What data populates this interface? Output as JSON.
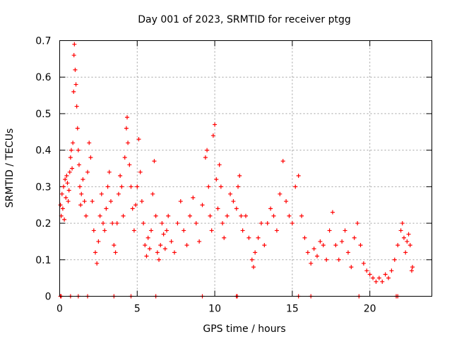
{
  "chart_data": {
    "type": "scatter",
    "title": "Day 001 of 2023, SRMTID for receiver ptgg",
    "xlabel": "GPS time / hours",
    "ylabel": "SRMTID / TECUs",
    "xlim": [
      0,
      24
    ],
    "ylim": [
      0,
      0.7
    ],
    "xticks": [
      0,
      5,
      10,
      15,
      20
    ],
    "yticks": [
      0,
      0.1,
      0.2,
      0.3,
      0.4,
      0.5,
      0.6,
      0.7
    ],
    "xtick_labels": [
      "0",
      "5",
      "10",
      "15",
      "20"
    ],
    "ytick_labels": [
      "0",
      "0.1",
      "0.2",
      "0.3",
      "0.4",
      "0.5",
      "0.6",
      "0.7"
    ],
    "grid": true,
    "marker": "plus",
    "color": "#ff0000",
    "series": [
      {
        "name": "SRMTID",
        "points": [
          [
            0.05,
            0.25
          ],
          [
            0.1,
            0.22
          ],
          [
            0.15,
            0.28
          ],
          [
            0.2,
            0.24
          ],
          [
            0.25,
            0.3
          ],
          [
            0.3,
            0.21
          ],
          [
            0.35,
            0.32
          ],
          [
            0.4,
            0.27
          ],
          [
            0.45,
            0.33
          ],
          [
            0.5,
            0.31
          ],
          [
            0.55,
            0.26
          ],
          [
            0.6,
            0.29
          ],
          [
            0.65,
            0.34
          ],
          [
            0.7,
            0.38
          ],
          [
            0.75,
            0.4
          ],
          [
            0.8,
            0.35
          ],
          [
            0.85,
            0.42
          ],
          [
            0.9,
            0.56
          ],
          [
            0.92,
            0.66
          ],
          [
            0.95,
            0.69
          ],
          [
            1.0,
            0.62
          ],
          [
            1.05,
            0.58
          ],
          [
            1.1,
            0.52
          ],
          [
            1.15,
            0.46
          ],
          [
            1.2,
            0.4
          ],
          [
            1.25,
            0.36
          ],
          [
            1.3,
            0.3
          ],
          [
            1.35,
            0.25
          ],
          [
            1.4,
            0.28
          ],
          [
            1.5,
            0.32
          ],
          [
            1.6,
            0.26
          ],
          [
            1.7,
            0.22
          ],
          [
            1.8,
            0.34
          ],
          [
            1.9,
            0.42
          ],
          [
            2.0,
            0.38
          ],
          [
            2.1,
            0.26
          ],
          [
            2.2,
            0.18
          ],
          [
            2.3,
            0.12
          ],
          [
            2.4,
            0.09
          ],
          [
            2.5,
            0.15
          ],
          [
            2.6,
            0.22
          ],
          [
            2.7,
            0.28
          ],
          [
            2.8,
            0.2
          ],
          [
            2.9,
            0.18
          ],
          [
            3.0,
            0.24
          ],
          [
            3.1,
            0.3
          ],
          [
            3.2,
            0.34
          ],
          [
            3.3,
            0.26
          ],
          [
            3.4,
            0.2
          ],
          [
            3.5,
            0.14
          ],
          [
            3.6,
            0.12
          ],
          [
            3.7,
            0.2
          ],
          [
            3.8,
            0.28
          ],
          [
            3.9,
            0.33
          ],
          [
            4.0,
            0.3
          ],
          [
            4.1,
            0.22
          ],
          [
            4.2,
            0.38
          ],
          [
            4.3,
            0.46
          ],
          [
            4.35,
            0.49
          ],
          [
            4.4,
            0.42
          ],
          [
            4.5,
            0.36
          ],
          [
            4.6,
            0.3
          ],
          [
            4.7,
            0.24
          ],
          [
            4.8,
            0.18
          ],
          [
            4.9,
            0.25
          ],
          [
            5.0,
            0.3
          ],
          [
            5.1,
            0.43
          ],
          [
            5.2,
            0.34
          ],
          [
            5.3,
            0.26
          ],
          [
            5.4,
            0.2
          ],
          [
            5.5,
            0.14
          ],
          [
            5.6,
            0.11
          ],
          [
            5.7,
            0.16
          ],
          [
            5.8,
            0.13
          ],
          [
            5.9,
            0.18
          ],
          [
            6.0,
            0.28
          ],
          [
            6.1,
            0.37
          ],
          [
            6.2,
            0.22
          ],
          [
            6.3,
            0.12
          ],
          [
            6.4,
            0.1
          ],
          [
            6.5,
            0.14
          ],
          [
            6.6,
            0.2
          ],
          [
            6.7,
            0.17
          ],
          [
            6.8,
            0.13
          ],
          [
            6.9,
            0.18
          ],
          [
            7.0,
            0.22
          ],
          [
            7.2,
            0.15
          ],
          [
            7.4,
            0.12
          ],
          [
            7.6,
            0.2
          ],
          [
            7.8,
            0.26
          ],
          [
            8.0,
            0.18
          ],
          [
            8.2,
            0.14
          ],
          [
            8.4,
            0.22
          ],
          [
            8.6,
            0.27
          ],
          [
            8.8,
            0.2
          ],
          [
            9.0,
            0.15
          ],
          [
            9.2,
            0.25
          ],
          [
            9.4,
            0.38
          ],
          [
            9.5,
            0.4
          ],
          [
            9.6,
            0.3
          ],
          [
            9.7,
            0.22
          ],
          [
            9.8,
            0.18
          ],
          [
            9.9,
            0.44
          ],
          [
            10.0,
            0.47
          ],
          [
            10.1,
            0.32
          ],
          [
            10.2,
            0.24
          ],
          [
            10.3,
            0.36
          ],
          [
            10.4,
            0.3
          ],
          [
            10.5,
            0.2
          ],
          [
            10.6,
            0.16
          ],
          [
            10.8,
            0.22
          ],
          [
            11.0,
            0.28
          ],
          [
            11.2,
            0.26
          ],
          [
            11.4,
            0.24
          ],
          [
            11.5,
            0.3
          ],
          [
            11.6,
            0.33
          ],
          [
            11.7,
            0.22
          ],
          [
            11.8,
            0.18
          ],
          [
            12.0,
            0.22
          ],
          [
            12.2,
            0.16
          ],
          [
            12.4,
            0.1
          ],
          [
            12.5,
            0.08
          ],
          [
            12.6,
            0.12
          ],
          [
            12.8,
            0.16
          ],
          [
            13.0,
            0.2
          ],
          [
            13.2,
            0.14
          ],
          [
            13.4,
            0.2
          ],
          [
            13.6,
            0.24
          ],
          [
            13.8,
            0.22
          ],
          [
            14.0,
            0.18
          ],
          [
            14.2,
            0.28
          ],
          [
            14.4,
            0.37
          ],
          [
            14.6,
            0.26
          ],
          [
            14.8,
            0.22
          ],
          [
            15.0,
            0.2
          ],
          [
            15.2,
            0.3
          ],
          [
            15.4,
            0.33
          ],
          [
            15.6,
            0.22
          ],
          [
            15.8,
            0.16
          ],
          [
            16.0,
            0.12
          ],
          [
            16.2,
            0.09
          ],
          [
            16.4,
            0.13
          ],
          [
            16.6,
            0.11
          ],
          [
            16.8,
            0.15
          ],
          [
            17.0,
            0.14
          ],
          [
            17.2,
            0.1
          ],
          [
            17.4,
            0.18
          ],
          [
            17.6,
            0.23
          ],
          [
            17.8,
            0.14
          ],
          [
            18.0,
            0.1
          ],
          [
            18.2,
            0.15
          ],
          [
            18.4,
            0.18
          ],
          [
            18.6,
            0.12
          ],
          [
            18.8,
            0.08
          ],
          [
            19.0,
            0.16
          ],
          [
            19.2,
            0.2
          ],
          [
            19.4,
            0.14
          ],
          [
            19.6,
            0.09
          ],
          [
            19.8,
            0.07
          ],
          [
            20.0,
            0.06
          ],
          [
            20.2,
            0.05
          ],
          [
            20.4,
            0.04
          ],
          [
            20.6,
            0.05
          ],
          [
            20.8,
            0.04
          ],
          [
            21.0,
            0.06
          ],
          [
            21.2,
            0.05
          ],
          [
            21.4,
            0.07
          ],
          [
            21.6,
            0.1
          ],
          [
            21.8,
            0.14
          ],
          [
            22.0,
            0.18
          ],
          [
            22.1,
            0.2
          ],
          [
            22.2,
            0.16
          ],
          [
            22.3,
            0.12
          ],
          [
            22.4,
            0.15
          ],
          [
            22.5,
            0.17
          ],
          [
            22.6,
            0.14
          ],
          [
            22.7,
            0.07
          ],
          [
            22.75,
            0.08
          ]
        ]
      }
    ],
    "baseline_points": [
      [
        0.05,
        0
      ],
      [
        0.1,
        0
      ],
      [
        0.7,
        0
      ],
      [
        1.2,
        0
      ],
      [
        1.8,
        0
      ],
      [
        3.5,
        0
      ],
      [
        4.6,
        0
      ],
      [
        6.2,
        0
      ],
      [
        9.2,
        0
      ],
      [
        11.4,
        0
      ],
      [
        11.45,
        0
      ],
      [
        15.4,
        0
      ],
      [
        16.2,
        0
      ],
      [
        19.3,
        0
      ],
      [
        21.7,
        0
      ],
      [
        21.8,
        0
      ]
    ]
  }
}
